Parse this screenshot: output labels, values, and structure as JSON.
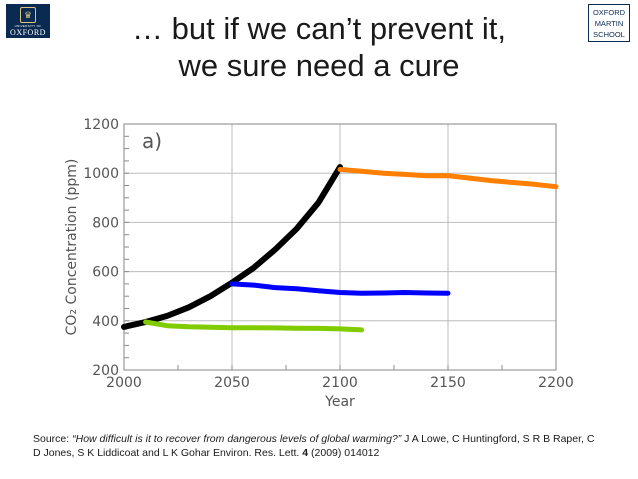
{
  "slide": {
    "title_line1": "… but if we can’t prevent it,",
    "title_line2": "we sure need a cure",
    "logo_left_university": "UNIVERSITY OF",
    "logo_left_name": "OXFORD",
    "logo_right_line1": "OXFORD",
    "logo_right_line2": "MARTIN",
    "logo_right_line3": "SCHOOL",
    "source_prefix": "Source: ",
    "source_title": "“How difficult is it to recover from dangerous levels of global warming?”",
    "source_authors": " J A Lowe, C Huntingford, S R B Raper, C D Jones, S K Liddicoat and L K Gohar Environ. Res. Lett. ",
    "source_volume": "4",
    "source_year_id": " (2009) 014012"
  },
  "chart_data": {
    "type": "line",
    "panel_label": "a)",
    "xlabel": "Year",
    "ylabel": "CO₂ Concentration (ppm)",
    "xlim": [
      2000,
      2200
    ],
    "ylim": [
      200,
      1200
    ],
    "x_ticks": [
      2000,
      2050,
      2100,
      2150,
      2200
    ],
    "y_ticks": [
      200,
      400,
      600,
      800,
      1000,
      1200
    ],
    "grid": true,
    "series": [
      {
        "color": "#000000",
        "x": [
          2000,
          2010,
          2020,
          2030,
          2040,
          2050,
          2060,
          2070,
          2080,
          2090,
          2100
        ],
        "y": [
          375,
          395,
          420,
          455,
          500,
          555,
          615,
          690,
          775,
          880,
          1025
        ]
      },
      {
        "color": "#ff8000",
        "x": [
          2100,
          2110,
          2120,
          2130,
          2140,
          2150,
          2160,
          2170,
          2180,
          2190,
          2200
        ],
        "y": [
          1015,
          1008,
          1000,
          995,
          990,
          990,
          980,
          970,
          962,
          955,
          945
        ]
      },
      {
        "color": "#0000ff",
        "x": [
          2050,
          2060,
          2070,
          2080,
          2090,
          2100,
          2110,
          2120,
          2130,
          2140,
          2150
        ],
        "y": [
          550,
          545,
          535,
          530,
          522,
          515,
          512,
          513,
          515,
          513,
          512
        ]
      },
      {
        "color": "#80cc00",
        "x": [
          2010,
          2020,
          2030,
          2040,
          2050,
          2060,
          2070,
          2080,
          2090,
          2100,
          2110
        ],
        "y": [
          395,
          380,
          376,
          374,
          372,
          372,
          371,
          370,
          369,
          367,
          363
        ]
      }
    ]
  }
}
